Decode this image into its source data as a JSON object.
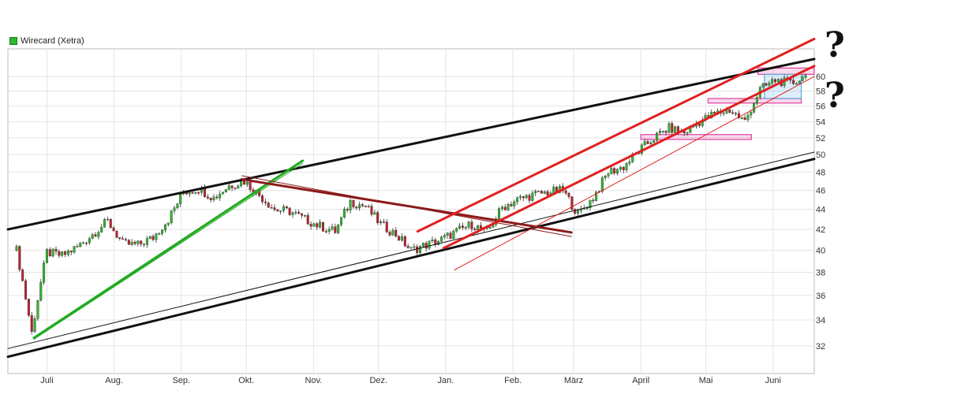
{
  "legend": {
    "label": "Wirecard (Xetra)",
    "color": "#2eb82e"
  },
  "annotations": {
    "question_top": "?",
    "question_bottom": "?"
  },
  "chart_data": {
    "type": "candlestick",
    "title": "",
    "legend": [
      "Wirecard (Xetra)"
    ],
    "ylim": [
      30,
      64
    ],
    "y_ticks": [
      32,
      34,
      36,
      38,
      40,
      42,
      44,
      46,
      48,
      50,
      52,
      54,
      56,
      58,
      60
    ],
    "y_scale": "log",
    "x_range": [
      "2016-06-13",
      "2017-06-20"
    ],
    "x_ticks": [
      {
        "date": "2016-07-01",
        "label": "Juli"
      },
      {
        "date": "2016-08-01",
        "label": "Aug."
      },
      {
        "date": "2016-09-01",
        "label": "Sep."
      },
      {
        "date": "2016-10-01",
        "label": "Okt."
      },
      {
        "date": "2016-11-01",
        "label": "Nov."
      },
      {
        "date": "2016-12-01",
        "label": "Dez."
      },
      {
        "date": "2017-01-01",
        "label": "Jan."
      },
      {
        "date": "2017-02-01",
        "label": "Feb."
      },
      {
        "date": "2017-03-01",
        "label": "März"
      },
      {
        "date": "2017-04-01",
        "label": "April"
      },
      {
        "date": "2017-05-01",
        "label": "Mai"
      },
      {
        "date": "2017-06-01",
        "label": "Juni"
      }
    ],
    "grid": true,
    "series": [
      {
        "weekly_close": [
          [
            "2016-06-17",
            40.0
          ],
          [
            "2016-06-24",
            33.0
          ],
          [
            "2016-07-01",
            39.8
          ],
          [
            "2016-07-08",
            39.5
          ],
          [
            "2016-07-15",
            40.3
          ],
          [
            "2016-07-22",
            41.5
          ],
          [
            "2016-07-29",
            42.8
          ],
          [
            "2016-08-05",
            40.6
          ],
          [
            "2016-08-12",
            40.5
          ],
          [
            "2016-08-19",
            41.2
          ],
          [
            "2016-08-26",
            43.0
          ],
          [
            "2016-09-02",
            45.8
          ],
          [
            "2016-09-09",
            46.2
          ],
          [
            "2016-09-16",
            45.2
          ],
          [
            "2016-09-23",
            46.5
          ],
          [
            "2016-09-30",
            47.0
          ],
          [
            "2016-10-07",
            45.5
          ],
          [
            "2016-10-14",
            44.0
          ],
          [
            "2016-10-21",
            43.8
          ],
          [
            "2016-10-28",
            43.0
          ],
          [
            "2016-11-04",
            42.3
          ],
          [
            "2016-11-11",
            41.8
          ],
          [
            "2016-11-18",
            44.8
          ],
          [
            "2016-11-25",
            44.3
          ],
          [
            "2016-12-02",
            42.5
          ],
          [
            "2016-12-09",
            41.5
          ],
          [
            "2016-12-16",
            40.0
          ],
          [
            "2016-12-23",
            40.5
          ],
          [
            "2016-12-30",
            41.0
          ],
          [
            "2017-01-06",
            41.8
          ],
          [
            "2017-01-13",
            42.5
          ],
          [
            "2017-01-20",
            41.7
          ],
          [
            "2017-01-27",
            44.2
          ],
          [
            "2017-02-03",
            45.0
          ],
          [
            "2017-02-10",
            45.5
          ],
          [
            "2017-02-17",
            45.8
          ],
          [
            "2017-02-24",
            46.0
          ],
          [
            "2017-03-03",
            43.5
          ],
          [
            "2017-03-10",
            45.2
          ],
          [
            "2017-03-17",
            48.0
          ],
          [
            "2017-03-24",
            48.6
          ],
          [
            "2017-03-31",
            50.4
          ],
          [
            "2017-04-07",
            52.0
          ],
          [
            "2017-04-14",
            53.2
          ],
          [
            "2017-04-21",
            52.6
          ],
          [
            "2017-04-28",
            54.0
          ],
          [
            "2017-05-05",
            55.0
          ],
          [
            "2017-05-12",
            55.5
          ],
          [
            "2017-05-19",
            54.0
          ],
          [
            "2017-05-26",
            58.2
          ],
          [
            "2017-06-02",
            59.5
          ],
          [
            "2017-06-09",
            59.0
          ],
          [
            "2017-06-16",
            60.0
          ]
        ]
      }
    ],
    "trendlines": [
      {
        "color": "#111111",
        "from": [
          "2016-06-13",
          42.0
        ],
        "to": [
          "2017-06-20",
          62.5
        ]
      },
      {
        "color": "#111111",
        "from": [
          "2016-06-13",
          31.2
        ],
        "to": [
          "2017-06-20",
          49.5
        ]
      },
      {
        "color": "#111111",
        "from": [
          "2016-06-13",
          31.8
        ],
        "to": [
          "2017-06-20",
          50.3
        ]
      },
      {
        "color": "#22aa22",
        "from": [
          "2016-06-25",
          32.5
        ],
        "to": [
          "2016-10-27",
          49.0
        ]
      },
      {
        "color": "#22aa22",
        "from": [
          "2016-06-25",
          32.6
        ],
        "to": [
          "2016-10-27",
          49.3
        ]
      },
      {
        "color": "#8b1a1a",
        "from": [
          "2016-09-29",
          47.6
        ],
        "to": [
          "2017-02-28",
          41.3
        ]
      },
      {
        "color": "#8b1a1a",
        "from": [
          "2016-09-29",
          47.2
        ],
        "to": [
          "2017-02-28",
          41.7
        ]
      },
      {
        "color": "#e02020",
        "from": [
          "2016-12-19",
          41.8
        ],
        "to": [
          "2017-06-20",
          65.5
        ]
      },
      {
        "color": "#e02020",
        "from": [
          "2016-12-31",
          40.2
        ],
        "to": [
          "2017-06-20",
          61.5
        ]
      },
      {
        "color": "#e02020",
        "from": [
          "2017-01-05",
          38.2
        ],
        "to": [
          "2017-06-20",
          60.0
        ]
      }
    ],
    "highlight_zones": [
      {
        "color": "#e040a0",
        "x": [
          "2017-04-01",
          "2017-05-22"
        ],
        "y": [
          51.8,
          52.4
        ]
      },
      {
        "color": "#e040a0",
        "x": [
          "2017-05-02",
          "2017-06-14"
        ],
        "y": [
          56.4,
          57.0
        ]
      },
      {
        "color": "#e040a0",
        "x": [
          "2017-05-25",
          "2017-06-20"
        ],
        "y": [
          60.3,
          61.2
        ]
      },
      {
        "color": "#5aa8e0",
        "x": [
          "2017-05-28",
          "2017-06-14"
        ],
        "y": [
          57.0,
          60.3
        ]
      }
    ]
  }
}
